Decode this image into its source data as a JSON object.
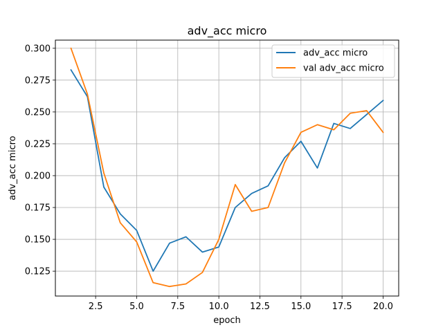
{
  "chart_data": {
    "type": "line",
    "title": "adv_acc micro",
    "xlabel": "epoch",
    "ylabel": "adv_acc micro",
    "xlim": [
      0.05,
      20.95
    ],
    "ylim": [
      0.1055,
      0.3064
    ],
    "x_ticks": [
      2.5,
      5.0,
      7.5,
      10.0,
      12.5,
      15.0,
      17.5,
      20.0
    ],
    "x_tick_labels": [
      "2.5",
      "5.0",
      "7.5",
      "10.0",
      "12.5",
      "15.0",
      "17.5",
      "20.0"
    ],
    "y_ticks": [
      0.125,
      0.15,
      0.175,
      0.2,
      0.225,
      0.25,
      0.275,
      0.3
    ],
    "y_tick_labels": [
      "0.125",
      "0.150",
      "0.175",
      "0.200",
      "0.225",
      "0.250",
      "0.275",
      "0.300"
    ],
    "grid": true,
    "legend_position": "top-right",
    "x": [
      1,
      2,
      3,
      4,
      5,
      6,
      7,
      8,
      9,
      10,
      11,
      12,
      13,
      14,
      15,
      16,
      17,
      18,
      19,
      20
    ],
    "series": [
      {
        "name": "adv_acc micro",
        "color": "#1f77b4",
        "values": [
          0.283,
          0.262,
          0.191,
          0.17,
          0.157,
          0.125,
          0.147,
          0.152,
          0.14,
          0.144,
          0.175,
          0.186,
          0.192,
          0.214,
          0.227,
          0.206,
          0.241,
          0.237,
          0.248,
          0.259
        ]
      },
      {
        "name": "val adv_acc micro",
        "color": "#ff7f0e",
        "values": [
          0.3,
          0.264,
          0.202,
          0.163,
          0.148,
          0.116,
          0.113,
          0.115,
          0.124,
          0.15,
          0.193,
          0.172,
          0.175,
          0.21,
          0.234,
          0.24,
          0.236,
          0.249,
          0.251,
          0.234
        ]
      }
    ]
  }
}
